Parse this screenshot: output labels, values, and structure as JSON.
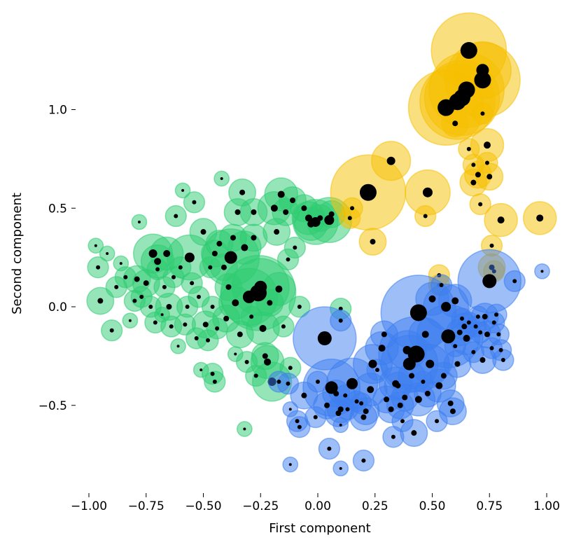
{
  "chart_data": {
    "type": "scatter",
    "title": "",
    "xlabel": "First component",
    "ylabel": "Second component",
    "xlim": [
      -1.05,
      1.05
    ],
    "ylim": [
      -0.93,
      1.45
    ],
    "x_ticks": [
      -1.0,
      -0.75,
      -0.5,
      -0.25,
      0.0,
      0.25,
      0.5,
      0.75,
      1.0
    ],
    "x_tick_labels": [
      "−1.00",
      "−0.75",
      "−0.50",
      "−0.25",
      "0.00",
      "0.25",
      "0.50",
      "0.75",
      "1.00"
    ],
    "y_ticks": [
      -0.5,
      0.0,
      0.5,
      1.0
    ],
    "y_tick_labels": [
      "−0.5",
      "0.0",
      "0.5",
      "1.0"
    ],
    "grid": false,
    "legend": "none",
    "series": [
      {
        "color": "#2ecc71",
        "points": [
          [
            -0.97,
            0.31,
            2
          ],
          [
            -0.96,
            0.2,
            3
          ],
          [
            -0.95,
            0.03,
            4
          ],
          [
            -0.92,
            0.27,
            2
          ],
          [
            -0.9,
            -0.12,
            3
          ],
          [
            -0.88,
            0.1,
            3
          ],
          [
            -0.86,
            0.22,
            2
          ],
          [
            -0.84,
            0.15,
            3
          ],
          [
            -0.82,
            -0.07,
            2
          ],
          [
            -0.8,
            0.03,
            3
          ],
          [
            -0.79,
            0.14,
            4
          ],
          [
            -0.78,
            0.43,
            2
          ],
          [
            -0.77,
            0.05,
            3
          ],
          [
            -0.75,
            0.12,
            4
          ],
          [
            -0.73,
            0.0,
            3
          ],
          [
            -0.72,
            0.27,
            6
          ],
          [
            -0.71,
            -0.08,
            3
          ],
          [
            -0.7,
            0.19,
            3
          ],
          [
            -0.7,
            0.23,
            5
          ],
          [
            -0.68,
            -0.04,
            2
          ],
          [
            -0.67,
            0.1,
            3
          ],
          [
            -0.66,
            0.27,
            5
          ],
          [
            -0.65,
            0.0,
            4
          ],
          [
            -0.64,
            -0.1,
            3
          ],
          [
            -0.63,
            0.15,
            3
          ],
          [
            -0.62,
            0.46,
            3
          ],
          [
            -0.61,
            -0.2,
            2
          ],
          [
            -0.6,
            0.2,
            3
          ],
          [
            -0.59,
            0.59,
            2
          ],
          [
            -0.58,
            -0.09,
            3
          ],
          [
            -0.57,
            0.0,
            3
          ],
          [
            -0.56,
            0.25,
            7
          ],
          [
            -0.55,
            0.12,
            3
          ],
          [
            -0.54,
            0.53,
            3
          ],
          [
            -0.53,
            -0.16,
            3
          ],
          [
            -0.52,
            0.05,
            3
          ],
          [
            -0.51,
            -0.32,
            2
          ],
          [
            -0.5,
            0.38,
            4
          ],
          [
            -0.49,
            -0.09,
            4
          ],
          [
            -0.48,
            -0.17,
            3
          ],
          [
            -0.47,
            0.2,
            3
          ],
          [
            -0.46,
            -0.34,
            3
          ],
          [
            -0.46,
            0.0,
            3
          ],
          [
            -0.45,
            0.27,
            4
          ],
          [
            -0.45,
            -0.38,
            3
          ],
          [
            -0.44,
            -0.11,
            3
          ],
          [
            -0.43,
            0.32,
            4
          ],
          [
            -0.42,
            0.65,
            2
          ],
          [
            -0.41,
            0.2,
            4
          ],
          [
            -0.4,
            -0.06,
            4
          ],
          [
            -0.39,
            0.1,
            4
          ],
          [
            -0.38,
            0.25,
            9
          ],
          [
            -0.37,
            0.35,
            4
          ],
          [
            -0.36,
            -0.24,
            2
          ],
          [
            -0.36,
            0.02,
            5
          ],
          [
            -0.35,
            0.48,
            4
          ],
          [
            -0.34,
            -0.14,
            4
          ],
          [
            -0.33,
            0.58,
            4
          ],
          [
            -0.32,
            -0.62,
            2
          ],
          [
            -0.32,
            0.3,
            5
          ],
          [
            -0.31,
            -0.28,
            3
          ],
          [
            -0.3,
            0.05,
            9
          ],
          [
            -0.29,
            -0.05,
            3
          ],
          [
            -0.28,
            0.35,
            4
          ],
          [
            -0.28,
            0.48,
            4
          ],
          [
            -0.27,
            -0.35,
            3
          ],
          [
            -0.26,
            0.07,
            12
          ],
          [
            -0.25,
            0.1,
            9
          ],
          [
            -0.24,
            -0.11,
            5
          ],
          [
            -0.23,
            -0.25,
            4
          ],
          [
            -0.22,
            -0.28,
            5
          ],
          [
            -0.21,
            0.02,
            4
          ],
          [
            -0.2,
            -0.38,
            6
          ],
          [
            -0.19,
            0.5,
            5
          ],
          [
            -0.18,
            0.38,
            4
          ],
          [
            -0.17,
            0.09,
            5
          ],
          [
            -0.16,
            0.57,
            5
          ],
          [
            -0.15,
            -0.1,
            3
          ],
          [
            -0.14,
            0.48,
            4
          ],
          [
            -0.13,
            0.24,
            3
          ],
          [
            -0.12,
            -0.31,
            3
          ],
          [
            -0.11,
            0.54,
            4
          ],
          [
            -0.1,
            0.3,
            3
          ],
          [
            -0.08,
            0.0,
            3
          ],
          [
            -0.06,
            0.5,
            4
          ],
          [
            -0.04,
            0.45,
            5
          ],
          [
            -0.03,
            0.42,
            5
          ],
          [
            -0.01,
            0.43,
            7
          ],
          [
            0.01,
            0.45,
            4
          ],
          [
            0.05,
            0.44,
            7
          ],
          [
            0.06,
            0.47,
            4
          ],
          [
            0.1,
            -0.01,
            3
          ]
        ]
      },
      {
        "color": "#f5bf00",
        "points": [
          [
            0.14,
            0.45,
            3
          ],
          [
            0.15,
            0.5,
            3
          ],
          [
            0.22,
            0.58,
            12
          ],
          [
            0.24,
            0.33,
            4
          ],
          [
            0.32,
            0.74,
            6
          ],
          [
            0.47,
            0.46,
            3
          ],
          [
            0.48,
            0.58,
            7
          ],
          [
            0.53,
            0.16,
            3
          ],
          [
            0.53,
            0.11,
            3
          ],
          [
            0.56,
            1.01,
            12
          ],
          [
            0.6,
            0.93,
            4
          ],
          [
            0.61,
            1.04,
            12
          ],
          [
            0.63,
            1.06,
            12
          ],
          [
            0.65,
            1.1,
            12
          ],
          [
            0.66,
            1.3,
            12
          ],
          [
            0.66,
            0.8,
            3
          ],
          [
            0.68,
            0.72,
            3
          ],
          [
            0.68,
            0.63,
            4
          ],
          [
            0.7,
            0.67,
            4
          ],
          [
            0.71,
            0.52,
            3
          ],
          [
            0.72,
            1.15,
            12
          ],
          [
            0.72,
            1.2,
            9
          ],
          [
            0.72,
            0.98,
            3
          ],
          [
            0.74,
            0.82,
            5
          ],
          [
            0.74,
            0.73,
            3
          ],
          [
            0.75,
            0.66,
            4
          ],
          [
            0.76,
            0.2,
            4
          ],
          [
            0.77,
            0.18,
            3
          ],
          [
            0.8,
            0.44,
            5
          ],
          [
            0.76,
            0.31,
            3
          ],
          [
            0.97,
            0.45,
            5
          ]
        ]
      },
      {
        "color": "#3d7ef0",
        "points": [
          [
            -0.17,
            -0.38,
            3
          ],
          [
            -0.13,
            -0.39,
            3
          ],
          [
            -0.12,
            -0.8,
            2
          ],
          [
            -0.12,
            -0.52,
            2
          ],
          [
            -0.09,
            -0.58,
            3
          ],
          [
            -0.08,
            -0.61,
            3
          ],
          [
            -0.06,
            -0.45,
            4
          ],
          [
            -0.01,
            -0.56,
            3
          ],
          [
            0.0,
            -0.38,
            3
          ],
          [
            0.03,
            -0.16,
            10
          ],
          [
            0.04,
            -0.5,
            4
          ],
          [
            0.05,
            -0.72,
            3
          ],
          [
            0.06,
            -0.41,
            9
          ],
          [
            0.08,
            -0.44,
            4
          ],
          [
            0.09,
            -0.54,
            4
          ],
          [
            0.1,
            -0.82,
            2
          ],
          [
            0.1,
            -0.6,
            2
          ],
          [
            0.1,
            -0.52,
            4
          ],
          [
            0.1,
            -0.07,
            3
          ],
          [
            0.12,
            -0.45,
            3
          ],
          [
            0.13,
            -0.52,
            3
          ],
          [
            0.15,
            -0.39,
            8
          ],
          [
            0.17,
            -0.48,
            3
          ],
          [
            0.19,
            -0.49,
            3
          ],
          [
            0.2,
            -0.56,
            4
          ],
          [
            0.2,
            -0.78,
            3
          ],
          [
            0.21,
            -0.53,
            4
          ],
          [
            0.23,
            -0.42,
            5
          ],
          [
            0.24,
            -0.29,
            6
          ],
          [
            0.26,
            -0.32,
            3
          ],
          [
            0.28,
            -0.21,
            5
          ],
          [
            0.29,
            -0.14,
            4
          ],
          [
            0.3,
            -0.47,
            4
          ],
          [
            0.32,
            -0.52,
            4
          ],
          [
            0.33,
            -0.66,
            3
          ],
          [
            0.34,
            -0.39,
            5
          ],
          [
            0.35,
            -0.4,
            4
          ],
          [
            0.36,
            -0.5,
            4
          ],
          [
            0.37,
            -0.58,
            3
          ],
          [
            0.38,
            -0.46,
            4
          ],
          [
            0.39,
            -0.22,
            6
          ],
          [
            0.4,
            -0.29,
            9
          ],
          [
            0.41,
            -0.35,
            4
          ],
          [
            0.42,
            -0.64,
            4
          ],
          [
            0.43,
            -0.24,
            12
          ],
          [
            0.44,
            -0.47,
            5
          ],
          [
            0.44,
            -0.03,
            12
          ],
          [
            0.46,
            -0.38,
            3
          ],
          [
            0.47,
            -0.14,
            5
          ],
          [
            0.48,
            -0.44,
            4
          ],
          [
            0.49,
            -0.29,
            6
          ],
          [
            0.5,
            0.04,
            5
          ],
          [
            0.52,
            -0.58,
            3
          ],
          [
            0.53,
            -0.4,
            5
          ],
          [
            0.54,
            0.11,
            3
          ],
          [
            0.55,
            -0.35,
            4
          ],
          [
            0.56,
            0.0,
            7
          ],
          [
            0.57,
            -0.15,
            10
          ],
          [
            0.58,
            -0.49,
            4
          ],
          [
            0.59,
            -0.53,
            4
          ],
          [
            0.6,
            -0.2,
            3
          ],
          [
            0.6,
            0.03,
            5
          ],
          [
            0.61,
            -0.29,
            4
          ],
          [
            0.62,
            -0.13,
            4
          ],
          [
            0.63,
            -0.06,
            3
          ],
          [
            0.64,
            -0.1,
            4
          ],
          [
            0.65,
            -0.16,
            5
          ],
          [
            0.66,
            -0.08,
            3
          ],
          [
            0.68,
            -0.23,
            3
          ],
          [
            0.69,
            -0.1,
            3
          ],
          [
            0.7,
            -0.05,
            3
          ],
          [
            0.71,
            -0.13,
            3
          ],
          [
            0.72,
            -0.27,
            4
          ],
          [
            0.73,
            -0.05,
            4
          ],
          [
            0.74,
            -0.14,
            4
          ],
          [
            0.75,
            0.13,
            10
          ],
          [
            0.76,
            -0.21,
            3
          ],
          [
            0.77,
            -0.08,
            3
          ],
          [
            0.78,
            -0.04,
            3
          ],
          [
            0.79,
            -0.14,
            3
          ],
          [
            0.8,
            -0.22,
            3
          ],
          [
            0.81,
            -0.27,
            3
          ],
          [
            0.86,
            0.13,
            3
          ],
          [
            0.98,
            0.18,
            2
          ]
        ]
      }
    ]
  }
}
